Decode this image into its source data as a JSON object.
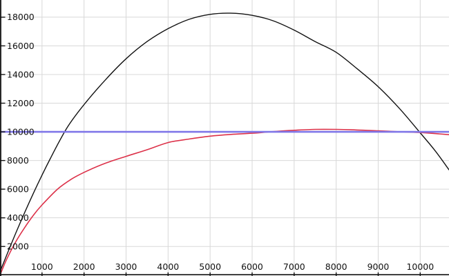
{
  "chart_data": {
    "type": "line",
    "title": "",
    "xlabel": "",
    "ylabel": "",
    "xlim": [
      0,
      10685
    ],
    "ylim": [
      -60,
      19200
    ],
    "grid": true,
    "legend": "none",
    "x_ticks": [
      1000,
      2000,
      3000,
      4000,
      5000,
      6000,
      7000,
      8000,
      9000,
      10000
    ],
    "y_ticks": [
      2000,
      4000,
      6000,
      8000,
      10000,
      12000,
      14000,
      16000,
      18000
    ],
    "x_tick_labels": [
      "1000",
      "2000",
      "3000",
      "4000",
      "5000",
      "6000",
      "7000",
      "8000",
      "9000",
      "10000"
    ],
    "y_tick_labels": [
      "2000",
      "4000",
      "6000",
      "8000",
      "10000",
      "12000",
      "14000",
      "16000",
      "18000"
    ],
    "series": [
      {
        "name": "black-arch-curve",
        "color": "#111111",
        "width": 1.4,
        "points": [
          [
            0,
            250
          ],
          [
            400,
            3100
          ],
          [
            800,
            5750
          ],
          [
            1200,
            8150
          ],
          [
            1600,
            10300
          ],
          [
            2000,
            11900
          ],
          [
            2500,
            13600
          ],
          [
            3000,
            15100
          ],
          [
            3500,
            16300
          ],
          [
            4000,
            17200
          ],
          [
            4500,
            17850
          ],
          [
            5000,
            18200
          ],
          [
            5480,
            18280
          ],
          [
            6000,
            18130
          ],
          [
            6500,
            17750
          ],
          [
            7000,
            17100
          ],
          [
            7500,
            16300
          ],
          [
            8000,
            15550
          ],
          [
            8500,
            14400
          ],
          [
            9000,
            13150
          ],
          [
            9500,
            11650
          ],
          [
            10000,
            9930
          ],
          [
            10350,
            8700
          ],
          [
            10685,
            7350
          ]
        ]
      },
      {
        "name": "red-saturating-curve",
        "color": "#dc3048",
        "width": 1.6,
        "points": [
          [
            0,
            0
          ],
          [
            150,
            1050
          ],
          [
            350,
            2200
          ],
          [
            560,
            3200
          ],
          [
            800,
            4200
          ],
          [
            1000,
            4900
          ],
          [
            1370,
            6000
          ],
          [
            1700,
            6700
          ],
          [
            2000,
            7170
          ],
          [
            2500,
            7800
          ],
          [
            3000,
            8290
          ],
          [
            3500,
            8750
          ],
          [
            4000,
            9250
          ],
          [
            4500,
            9500
          ],
          [
            5000,
            9700
          ],
          [
            5500,
            9820
          ],
          [
            6000,
            9900
          ],
          [
            6500,
            10020
          ],
          [
            7000,
            10110
          ],
          [
            7500,
            10170
          ],
          [
            8000,
            10170
          ],
          [
            8500,
            10130
          ],
          [
            9000,
            10070
          ],
          [
            9500,
            10010
          ],
          [
            10000,
            9950
          ],
          [
            10350,
            9880
          ],
          [
            10685,
            9800
          ]
        ]
      },
      {
        "name": "blue-horizontal-line",
        "color": "#7f76e8",
        "width": 2.6,
        "points": [
          [
            0,
            10000
          ],
          [
            10685,
            10000
          ]
        ]
      }
    ],
    "style": {
      "background": "#ffffff",
      "grid_color": "#d8d8d8",
      "axis_color": "#111111",
      "tick_label_color": "#111111",
      "tick_font_size": 12.5
    }
  }
}
